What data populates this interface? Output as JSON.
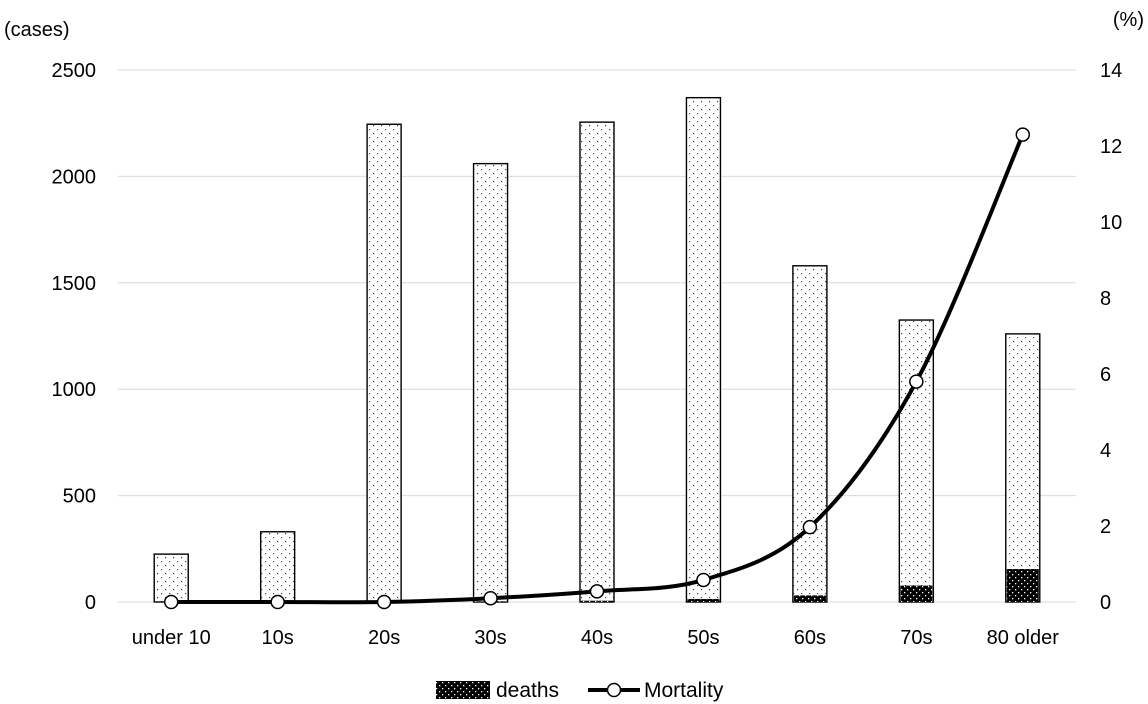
{
  "chart_data": {
    "type": "bar",
    "categories": [
      "under 10",
      "10s",
      "20s",
      "30s",
      "40s",
      "50s",
      "60s",
      "70s",
      "80 older"
    ],
    "series": [
      {
        "name": "",
        "kind": "bar",
        "axis": "left",
        "values": [
          225,
          330,
          2245,
          2060,
          2255,
          2370,
          1580,
          1325,
          1260
        ]
      },
      {
        "name": "deaths",
        "kind": "bar-overlay",
        "axis": "left",
        "values": [
          0,
          0,
          0,
          2,
          6,
          14,
          31,
          77,
          155
        ]
      },
      {
        "name": "Mortality",
        "kind": "line",
        "axis": "right",
        "values": [
          0,
          0,
          0,
          0.1,
          0.28,
          0.58,
          1.97,
          5.8,
          12.3
        ]
      }
    ],
    "y_left": {
      "label": "(cases)",
      "ylim": [
        0,
        2500
      ],
      "ticks": [
        0,
        500,
        1000,
        1500,
        2000,
        2500
      ]
    },
    "y_right": {
      "label": "(%)",
      "ylim": [
        0,
        14
      ],
      "ticks": [
        0,
        2,
        4,
        6,
        8,
        10,
        12,
        14
      ]
    },
    "grid": true,
    "legend_position": "bottom",
    "colors": {
      "total_bar_dots": "#444444",
      "deaths_fill": "#000000",
      "line": "#000000",
      "grid": "#d9d9d9"
    }
  }
}
